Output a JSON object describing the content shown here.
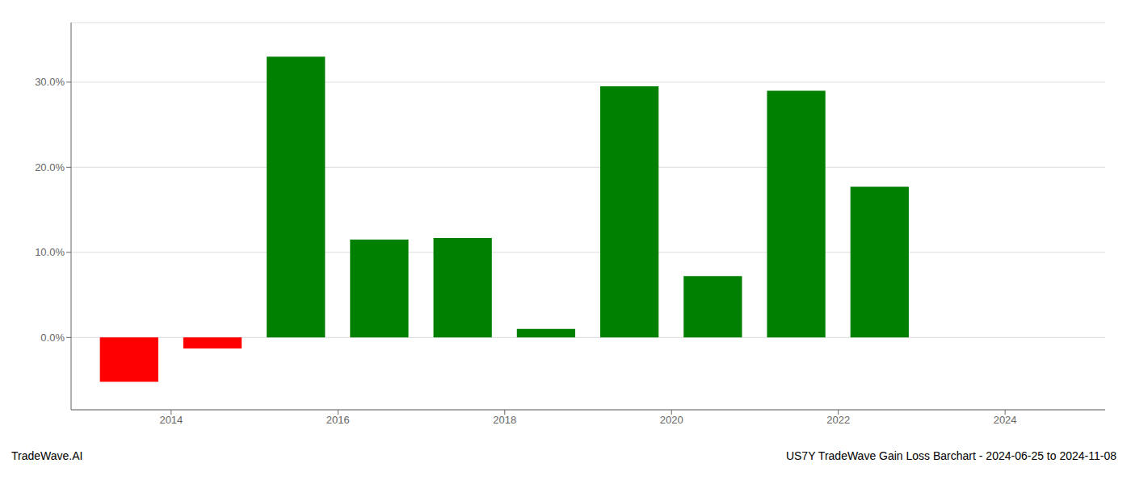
{
  "chart_data": {
    "type": "bar",
    "x": [
      2013.5,
      2014.5,
      2015.5,
      2016.5,
      2017.5,
      2018.5,
      2019.5,
      2020.5,
      2021.5,
      2022.5
    ],
    "values": [
      -5.2,
      -1.3,
      33.0,
      11.5,
      11.7,
      1.0,
      29.5,
      7.2,
      29.0,
      17.7
    ],
    "colors": [
      "#ff0000",
      "#ff0000",
      "#008000",
      "#008000",
      "#008000",
      "#008000",
      "#008000",
      "#008000",
      "#008000",
      "#008000"
    ],
    "xlim": [
      2012.8,
      2025.2
    ],
    "xticks": [
      2014,
      2016,
      2018,
      2020,
      2022,
      2024
    ],
    "ylim": [
      -8.5,
      37.0
    ],
    "yticks": [
      {
        "value": 0.0,
        "label": "0.0%"
      },
      {
        "value": 10.0,
        "label": "10.0%"
      },
      {
        "value": 20.0,
        "label": "20.0%"
      },
      {
        "value": 30.0,
        "label": "30.0%"
      }
    ],
    "grid": true,
    "annotations": [
      "TradeWave.AI",
      "US7Y TradeWave Gain Loss Barchart - 2024-06-25 to 2024-11-08"
    ]
  }
}
